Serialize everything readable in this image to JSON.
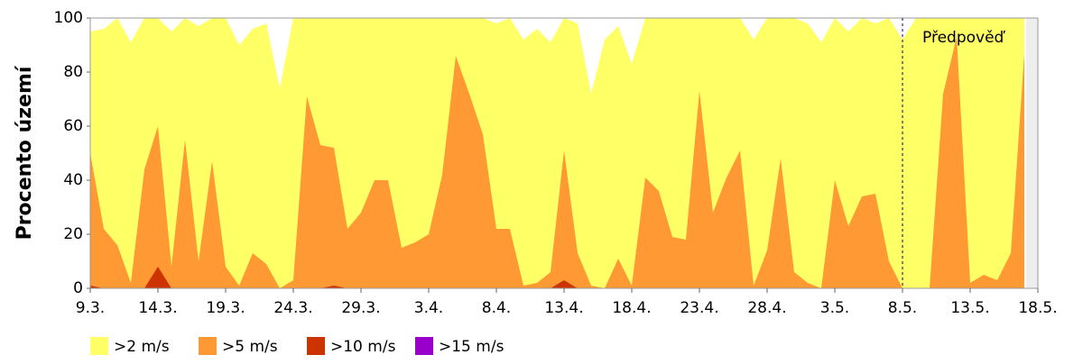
{
  "chart_data": {
    "type": "area",
    "y_label": "Procento území",
    "categories": [
      "9.3.",
      null,
      null,
      null,
      null,
      "14.3.",
      null,
      null,
      null,
      null,
      "19.3.",
      null,
      null,
      null,
      null,
      "24.3.",
      null,
      null,
      null,
      null,
      "29.3.",
      null,
      null,
      null,
      null,
      "3.4.",
      null,
      null,
      null,
      null,
      "8.4.",
      null,
      null,
      null,
      null,
      "13.4.",
      null,
      null,
      null,
      null,
      "18.4.",
      null,
      null,
      null,
      null,
      "23.4.",
      null,
      null,
      null,
      null,
      "28.4.",
      null,
      null,
      null,
      null,
      "3.5.",
      null,
      null,
      null,
      null,
      "8.5.",
      null,
      null,
      null,
      null,
      "13.5.",
      null,
      null,
      null,
      null,
      "18.5."
    ],
    "series": [
      {
        "name": ">2 m/s",
        "color": "#ffff66",
        "values": [
          95,
          96,
          100,
          91,
          100,
          100,
          95,
          100,
          97,
          100,
          100,
          90,
          96,
          98,
          74,
          100,
          100,
          100,
          100,
          100,
          100,
          100,
          100,
          100,
          100,
          100,
          100,
          100,
          100,
          100,
          98,
          100,
          92,
          96,
          91,
          100,
          98,
          72,
          92,
          97,
          83,
          100,
          100,
          100,
          100,
          100,
          100,
          100,
          100,
          92,
          100,
          100,
          100,
          98,
          91,
          100,
          95,
          100,
          98,
          100,
          92,
          100,
          100,
          100,
          100,
          100,
          100,
          100,
          100,
          100,
          null
        ]
      },
      {
        "name": ">5 m/s",
        "color": "#ff9933",
        "values": [
          50,
          22,
          16,
          2,
          44,
          60,
          8,
          55,
          10,
          47,
          8,
          1,
          13,
          9,
          0,
          3,
          71,
          53,
          52,
          22,
          28,
          40,
          40,
          15,
          17,
          20,
          42,
          86,
          72,
          57,
          22,
          22,
          1,
          2,
          6,
          51,
          13,
          1,
          0,
          11,
          1,
          41,
          36,
          19,
          18,
          73,
          28,
          41,
          51,
          1,
          14,
          48,
          6,
          2,
          0,
          40,
          23,
          34,
          35,
          10,
          0,
          0,
          0,
          72,
          93,
          2,
          5,
          3,
          13,
          87,
          null
        ]
      },
      {
        "name": ">10 m/s",
        "color": "#cc3300",
        "values": [
          1,
          0,
          0,
          0,
          0,
          8,
          0,
          0,
          0,
          0,
          0,
          0,
          0,
          0,
          0,
          0,
          0,
          0,
          1,
          0,
          0,
          0,
          0,
          0,
          0,
          0,
          0,
          0,
          0,
          0,
          0,
          0,
          0,
          0,
          0,
          3,
          0,
          0,
          0,
          0,
          0,
          0,
          0,
          0,
          0,
          0,
          0,
          0,
          0,
          0,
          0,
          0,
          0,
          0,
          0,
          0,
          0,
          0,
          0,
          0,
          0,
          0,
          0,
          0,
          0,
          0,
          0,
          0,
          0,
          0,
          null
        ]
      },
      {
        "name": ">15 m/s",
        "color": "#9900cc",
        "values": [
          0,
          0,
          0,
          0,
          0,
          0,
          0,
          0,
          0,
          0,
          0,
          0,
          0,
          0,
          0,
          0,
          0,
          0,
          0,
          0,
          0,
          0,
          0,
          0,
          0,
          0,
          0,
          0,
          0,
          0,
          0,
          0,
          0,
          0,
          0,
          0,
          0,
          0,
          0,
          0,
          0,
          0,
          0,
          0,
          0,
          0,
          0,
          0,
          0,
          0,
          0,
          0,
          0,
          0,
          0,
          0,
          0,
          0,
          0,
          0,
          0,
          0,
          0,
          0,
          0,
          0,
          0,
          0,
          0,
          0,
          null
        ]
      }
    ],
    "ylim": [
      0,
      100
    ],
    "yticks": [
      0,
      20,
      40,
      60,
      80,
      100
    ],
    "annotations": [
      {
        "text": "Předpověď",
        "x": "8.5."
      }
    ],
    "legend": "bottom"
  }
}
